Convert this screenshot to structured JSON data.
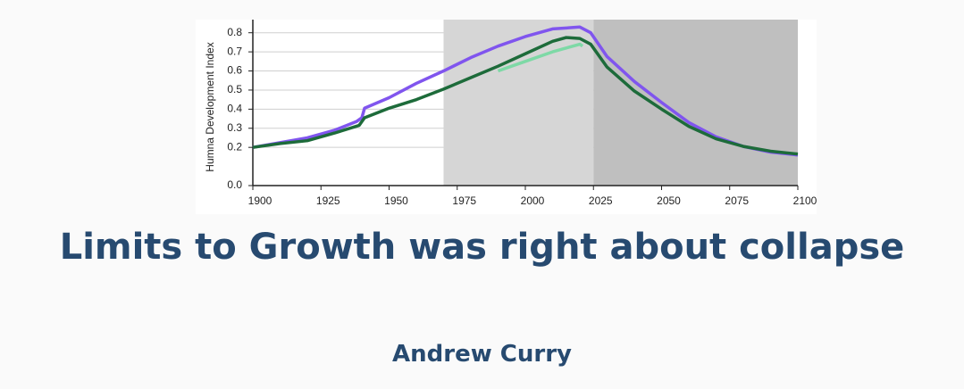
{
  "chart_data": {
    "type": "line",
    "ylabel": "Humna Development Index",
    "xlim": [
      1900,
      2100
    ],
    "xticks": [
      1900,
      1925,
      1950,
      1975,
      2000,
      2025,
      2050,
      2075,
      2100
    ],
    "ylim": [
      0,
      0.85
    ],
    "yticks": [
      {
        "value": 0,
        "label": "0.0"
      },
      0.2,
      0.3,
      0.4,
      0.5,
      0.6,
      0.7,
      0.8
    ],
    "grid": true,
    "shaded_regions": [
      {
        "start": 1970,
        "end": 2025,
        "color": "#d6d6d6"
      },
      {
        "start": 2025,
        "end": 2100,
        "color": "#bfbfbf"
      }
    ],
    "series": [
      {
        "color": "#8055ee",
        "x": [
          1900,
          1910,
          1920,
          1930,
          1938,
          1940,
          1941,
          1950,
          1960,
          1970,
          1980,
          1990,
          2000,
          2010,
          2020,
          2024,
          2030,
          2040,
          2050,
          2060,
          2070,
          2080,
          2090,
          2100
        ],
        "values": [
          0.2,
          0.225,
          0.25,
          0.29,
          0.335,
          0.355,
          0.405,
          0.46,
          0.535,
          0.6,
          0.67,
          0.73,
          0.78,
          0.82,
          0.83,
          0.8,
          0.675,
          0.545,
          0.435,
          0.33,
          0.255,
          0.205,
          0.175,
          0.16
        ]
      },
      {
        "color": "#1d6b3a",
        "x": [
          1900,
          1910,
          1920,
          1930,
          1939,
          1941,
          1950,
          1960,
          1970,
          1980,
          1990,
          2000,
          2010,
          2015,
          2020,
          2024,
          2030,
          2040,
          2050,
          2060,
          2070,
          2080,
          2090,
          2100
        ],
        "values": [
          0.2,
          0.22,
          0.235,
          0.275,
          0.315,
          0.355,
          0.405,
          0.45,
          0.505,
          0.565,
          0.625,
          0.69,
          0.755,
          0.775,
          0.77,
          0.74,
          0.62,
          0.495,
          0.4,
          0.31,
          0.245,
          0.205,
          0.18,
          0.165
        ]
      },
      {
        "color": "#7ed9a6",
        "x": [
          1990,
          2000,
          2010,
          2020,
          2021
        ],
        "values": [
          0.6,
          0.65,
          0.7,
          0.74,
          0.73
        ]
      }
    ]
  },
  "title": "Limits to Growth was right about collapse",
  "author": "Andrew Curry"
}
